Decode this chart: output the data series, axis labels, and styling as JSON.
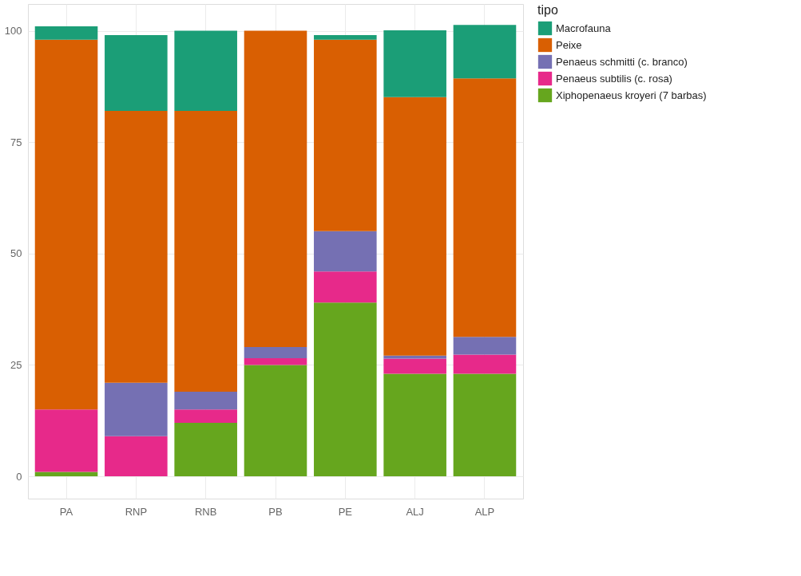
{
  "chart_data": {
    "type": "bar",
    "stacked": true,
    "legend_title": "tipo",
    "legend": "right",
    "grid": true,
    "categories": [
      "PA",
      "RNP",
      "RNB",
      "PB",
      "PE",
      "ALJ",
      "ALP"
    ],
    "ylim": [
      -5,
      106
    ],
    "yticks": [
      0,
      25,
      50,
      75,
      100
    ],
    "series": [
      {
        "name": "Xiphopenaeus kroyeri (7 barbas)",
        "color": "#66a61e",
        "values": [
          1,
          0,
          12,
          25,
          39,
          23,
          23
        ]
      },
      {
        "name": "Penaeus subtilis (c. rosa)",
        "color": "#e7298a",
        "values": [
          14,
          9,
          3,
          1.5,
          7,
          3.4,
          4.3
        ]
      },
      {
        "name": "Penaeus schmitti (c. branco)",
        "color": "#7570b3",
        "values": [
          0,
          12,
          4,
          2.5,
          9,
          0.7,
          4
        ]
      },
      {
        "name": "Peixe",
        "color": "#d95f02",
        "values": [
          83,
          61,
          63,
          71,
          43,
          58,
          58
        ]
      },
      {
        "name": "Macrofauna",
        "color": "#1b9e77",
        "values": [
          3,
          17,
          18,
          0,
          1,
          15,
          12
        ]
      }
    ]
  }
}
